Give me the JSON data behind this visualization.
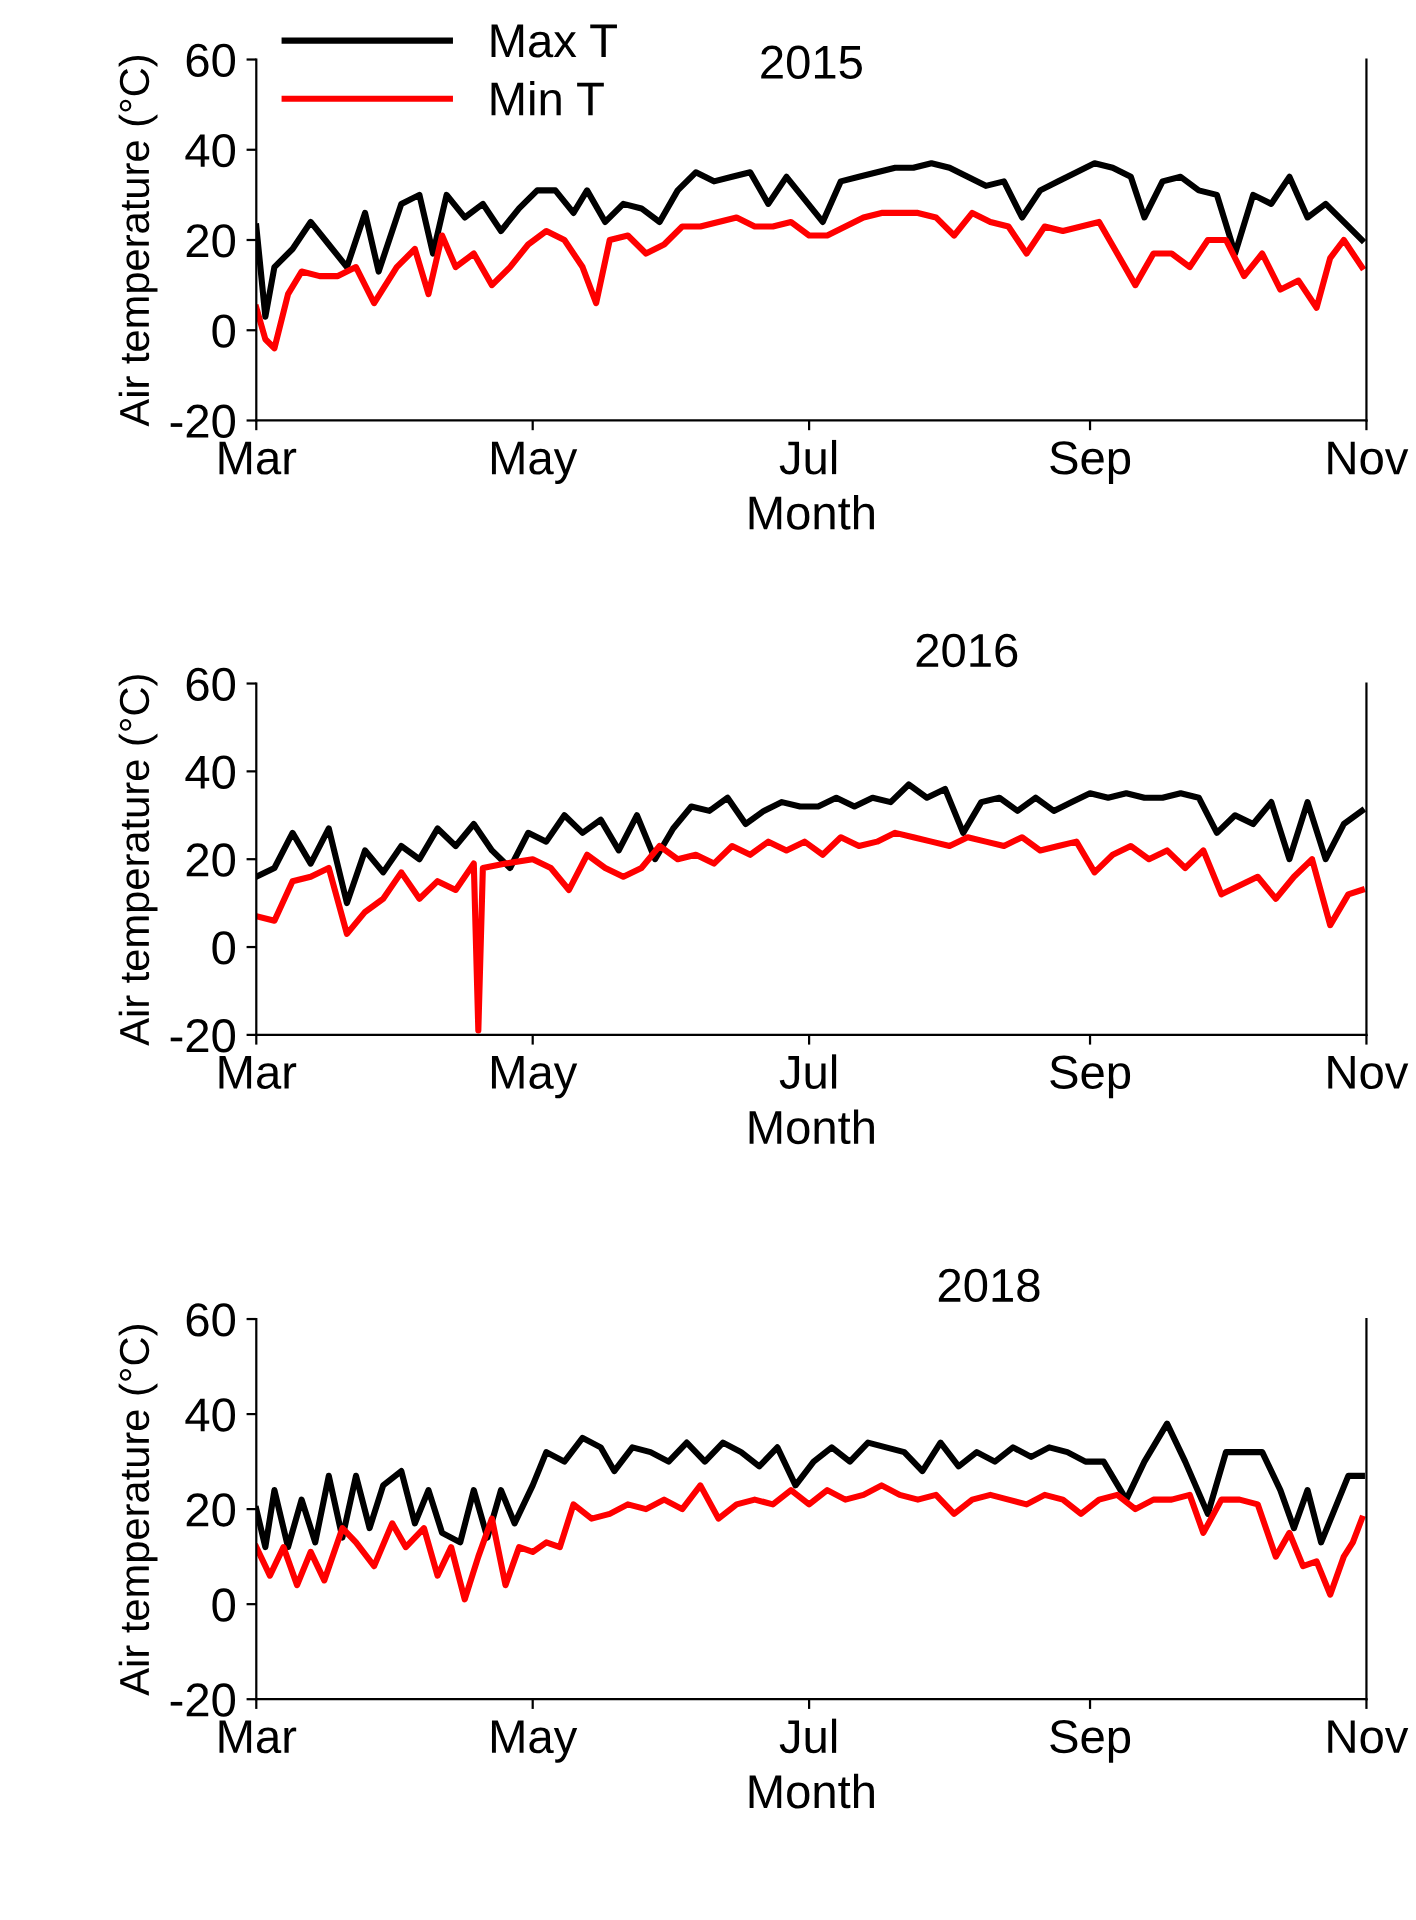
{
  "chart_data": [
    {
      "type": "line",
      "xlabel": "Month",
      "ylabel": "Air temperature (°C)",
      "annotations": [
        "2015"
      ],
      "legend": "top left",
      "grid": false,
      "marker": "none",
      "line_style": "solid",
      "xlim": [
        "2015-03-01",
        "2015-11-01"
      ],
      "xticks": [
        {
          "value": "2015-03-01",
          "label": "Mar"
        },
        {
          "value": "2015-05-01",
          "label": "May"
        },
        {
          "value": "2015-07-01",
          "label": "Jul"
        },
        {
          "value": "2015-09-01",
          "label": "Sep"
        },
        {
          "value": "2015-11-01",
          "label": "Nov"
        }
      ],
      "ylim": [
        -20,
        60
      ],
      "yticks": [
        -20,
        0,
        20,
        40,
        60
      ],
      "series": [
        {
          "name": "Max T",
          "color": "#000000",
          "x": [
            "2015-03-01",
            "2015-03-03",
            "2015-03-05",
            "2015-03-09",
            "2015-03-13",
            "2015-03-17",
            "2015-03-21",
            "2015-03-25",
            "2015-03-28",
            "2015-04-02",
            "2015-04-06",
            "2015-04-09",
            "2015-04-12",
            "2015-04-16",
            "2015-04-20",
            "2015-04-24",
            "2015-04-28",
            "2015-05-02",
            "2015-05-06",
            "2015-05-10",
            "2015-05-13",
            "2015-05-17",
            "2015-05-21",
            "2015-05-25",
            "2015-05-29",
            "2015-06-02",
            "2015-06-06",
            "2015-06-10",
            "2015-06-14",
            "2015-06-18",
            "2015-06-22",
            "2015-06-26",
            "2015-06-30",
            "2015-07-04",
            "2015-07-08",
            "2015-07-12",
            "2015-07-16",
            "2015-07-20",
            "2015-07-24",
            "2015-07-28",
            "2015-08-01",
            "2015-08-05",
            "2015-08-09",
            "2015-08-13",
            "2015-08-17",
            "2015-08-21",
            "2015-08-25",
            "2015-08-29",
            "2015-09-02",
            "2015-09-06",
            "2015-09-10",
            "2015-09-13",
            "2015-09-17",
            "2015-09-21",
            "2015-09-25",
            "2015-09-29",
            "2015-10-03",
            "2015-10-07",
            "2015-10-11",
            "2015-10-15",
            "2015-10-19",
            "2015-10-23",
            "2015-10-27",
            "2015-10-31"
          ],
          "values": [
            23,
            3,
            14,
            18,
            24,
            19,
            14,
            26,
            13,
            28,
            30,
            17,
            30,
            25,
            28,
            22,
            27,
            31,
            31,
            26,
            31,
            24,
            28,
            27,
            24,
            31,
            35,
            33,
            34,
            35,
            28,
            34,
            29,
            24,
            33,
            34,
            35,
            36,
            36,
            37,
            36,
            34,
            32,
            33,
            25,
            31,
            33,
            35,
            37,
            36,
            34,
            25,
            33,
            34,
            31,
            30,
            17,
            30,
            28,
            34,
            25,
            28,
            24,
            20
          ]
        },
        {
          "name": "Min T",
          "color": "#ff0000",
          "x": [
            "2015-03-01",
            "2015-03-03",
            "2015-03-05",
            "2015-03-08",
            "2015-03-11",
            "2015-03-15",
            "2015-03-19",
            "2015-03-23",
            "2015-03-27",
            "2015-04-01",
            "2015-04-05",
            "2015-04-08",
            "2015-04-11",
            "2015-04-14",
            "2015-04-18",
            "2015-04-22",
            "2015-04-26",
            "2015-04-30",
            "2015-05-04",
            "2015-05-08",
            "2015-05-12",
            "2015-05-15",
            "2015-05-18",
            "2015-05-22",
            "2015-05-26",
            "2015-05-30",
            "2015-06-03",
            "2015-06-07",
            "2015-06-11",
            "2015-06-15",
            "2015-06-19",
            "2015-06-23",
            "2015-06-27",
            "2015-07-01",
            "2015-07-05",
            "2015-07-09",
            "2015-07-13",
            "2015-07-17",
            "2015-07-21",
            "2015-07-25",
            "2015-07-29",
            "2015-08-02",
            "2015-08-06",
            "2015-08-10",
            "2015-08-14",
            "2015-08-18",
            "2015-08-22",
            "2015-08-26",
            "2015-08-30",
            "2015-09-03",
            "2015-09-07",
            "2015-09-11",
            "2015-09-15",
            "2015-09-19",
            "2015-09-23",
            "2015-09-27",
            "2015-10-01",
            "2015-10-05",
            "2015-10-09",
            "2015-10-13",
            "2015-10-17",
            "2015-10-21",
            "2015-10-24",
            "2015-10-27",
            "2015-10-31"
          ],
          "values": [
            5,
            -2,
            -4,
            8,
            13,
            12,
            12,
            14,
            6,
            14,
            18,
            8,
            21,
            14,
            17,
            10,
            14,
            19,
            22,
            20,
            14,
            6,
            20,
            21,
            17,
            19,
            23,
            23,
            24,
            25,
            23,
            23,
            24,
            21,
            21,
            23,
            25,
            26,
            26,
            26,
            25,
            21,
            26,
            24,
            23,
            17,
            23,
            22,
            23,
            24,
            17,
            10,
            17,
            17,
            14,
            20,
            20,
            12,
            17,
            9,
            11,
            5,
            16,
            20,
            14
          ]
        }
      ]
    },
    {
      "type": "line",
      "xlabel": "Month",
      "ylabel": "Air temperature (°C)",
      "annotations": [
        "2016"
      ],
      "grid": false,
      "marker": "none",
      "line_style": "solid",
      "xlim": [
        "2016-03-01",
        "2016-11-01"
      ],
      "xticks": [
        {
          "value": "2016-03-01",
          "label": "Mar"
        },
        {
          "value": "2016-05-01",
          "label": "May"
        },
        {
          "value": "2016-07-01",
          "label": "Jul"
        },
        {
          "value": "2016-09-01",
          "label": "Sep"
        },
        {
          "value": "2016-11-01",
          "label": "Nov"
        }
      ],
      "ylim": [
        -20,
        60
      ],
      "yticks": [
        -20,
        0,
        20,
        40,
        60
      ],
      "series": [
        {
          "color": "#000000",
          "x": [
            "2016-03-01",
            "2016-03-05",
            "2016-03-09",
            "2016-03-13",
            "2016-03-17",
            "2016-03-21",
            "2016-03-25",
            "2016-03-29",
            "2016-04-02",
            "2016-04-06",
            "2016-04-10",
            "2016-04-14",
            "2016-04-18",
            "2016-04-22",
            "2016-04-26",
            "2016-04-30",
            "2016-05-04",
            "2016-05-08",
            "2016-05-12",
            "2016-05-16",
            "2016-05-20",
            "2016-05-24",
            "2016-05-28",
            "2016-06-01",
            "2016-06-05",
            "2016-06-09",
            "2016-06-13",
            "2016-06-17",
            "2016-06-21",
            "2016-06-25",
            "2016-06-29",
            "2016-07-03",
            "2016-07-07",
            "2016-07-11",
            "2016-07-15",
            "2016-07-19",
            "2016-07-23",
            "2016-07-27",
            "2016-07-31",
            "2016-08-04",
            "2016-08-08",
            "2016-08-12",
            "2016-08-16",
            "2016-08-20",
            "2016-08-24",
            "2016-08-28",
            "2016-09-01",
            "2016-09-05",
            "2016-09-09",
            "2016-09-13",
            "2016-09-17",
            "2016-09-21",
            "2016-09-25",
            "2016-09-29",
            "2016-10-03",
            "2016-10-07",
            "2016-10-11",
            "2016-10-15",
            "2016-10-19",
            "2016-10-23",
            "2016-10-27",
            "2016-10-31"
          ],
          "values": [
            16,
            18,
            26,
            19,
            27,
            10,
            22,
            17,
            23,
            20,
            27,
            23,
            28,
            22,
            18,
            26,
            24,
            30,
            26,
            29,
            22,
            30,
            20,
            27,
            32,
            31,
            34,
            28,
            31,
            33,
            32,
            32,
            34,
            32,
            34,
            33,
            37,
            34,
            36,
            26,
            33,
            34,
            31,
            34,
            31,
            33,
            35,
            34,
            35,
            34,
            34,
            35,
            34,
            26,
            30,
            28,
            33,
            20,
            33,
            20,
            28,
            31
          ]
        },
        {
          "color": "#ff0000",
          "x": [
            "2016-03-01",
            "2016-03-05",
            "2016-03-09",
            "2016-03-13",
            "2016-03-17",
            "2016-03-21",
            "2016-03-25",
            "2016-03-29",
            "2016-04-02",
            "2016-04-06",
            "2016-04-10",
            "2016-04-14",
            "2016-04-18",
            "2016-04-19",
            "2016-04-20",
            "2016-04-25",
            "2016-05-01",
            "2016-05-05",
            "2016-05-09",
            "2016-05-13",
            "2016-05-17",
            "2016-05-21",
            "2016-05-25",
            "2016-05-29",
            "2016-06-02",
            "2016-06-06",
            "2016-06-10",
            "2016-06-14",
            "2016-06-18",
            "2016-06-22",
            "2016-06-26",
            "2016-06-30",
            "2016-07-04",
            "2016-07-08",
            "2016-07-12",
            "2016-07-16",
            "2016-07-20",
            "2016-07-24",
            "2016-07-28",
            "2016-08-01",
            "2016-08-05",
            "2016-08-09",
            "2016-08-13",
            "2016-08-17",
            "2016-08-21",
            "2016-08-25",
            "2016-08-29",
            "2016-09-02",
            "2016-09-06",
            "2016-09-10",
            "2016-09-14",
            "2016-09-18",
            "2016-09-22",
            "2016-09-26",
            "2016-09-30",
            "2016-10-04",
            "2016-10-08",
            "2016-10-12",
            "2016-10-16",
            "2016-10-20",
            "2016-10-24",
            "2016-10-28",
            "2016-10-31"
          ],
          "values": [
            7,
            6,
            15,
            16,
            18,
            3,
            8,
            11,
            17,
            11,
            15,
            13,
            19,
            -19,
            18,
            19,
            20,
            18,
            13,
            21,
            18,
            16,
            18,
            23,
            20,
            21,
            19,
            23,
            21,
            24,
            22,
            24,
            21,
            25,
            23,
            24,
            26,
            25,
            24,
            23,
            25,
            24,
            23,
            25,
            22,
            23,
            24,
            17,
            21,
            23,
            20,
            22,
            18,
            22,
            12,
            14,
            16,
            11,
            16,
            20,
            5,
            12,
            13
          ]
        }
      ]
    },
    {
      "type": "line",
      "xlabel": "Month",
      "ylabel": "Air temperature (°C)",
      "annotations": [
        "2018"
      ],
      "grid": false,
      "marker": "none",
      "line_style": "solid",
      "xlim": [
        "2018-03-01",
        "2018-11-01"
      ],
      "xticks": [
        {
          "value": "2018-03-01",
          "label": "Mar"
        },
        {
          "value": "2018-05-01",
          "label": "May"
        },
        {
          "value": "2018-07-01",
          "label": "Jul"
        },
        {
          "value": "2018-09-01",
          "label": "Sep"
        },
        {
          "value": "2018-11-01",
          "label": "Nov"
        }
      ],
      "ylim": [
        -20,
        60
      ],
      "yticks": [
        -20,
        0,
        20,
        40,
        60
      ],
      "series": [
        {
          "color": "#000000",
          "x": [
            "2018-03-01",
            "2018-03-03",
            "2018-03-05",
            "2018-03-08",
            "2018-03-11",
            "2018-03-14",
            "2018-03-17",
            "2018-03-20",
            "2018-03-23",
            "2018-03-26",
            "2018-03-29",
            "2018-04-02",
            "2018-04-05",
            "2018-04-08",
            "2018-04-11",
            "2018-04-15",
            "2018-04-18",
            "2018-04-21",
            "2018-04-24",
            "2018-04-27",
            "2018-05-01",
            "2018-05-04",
            "2018-05-08",
            "2018-05-12",
            "2018-05-16",
            "2018-05-19",
            "2018-05-23",
            "2018-05-27",
            "2018-05-31",
            "2018-06-04",
            "2018-06-08",
            "2018-06-12",
            "2018-06-16",
            "2018-06-20",
            "2018-06-24",
            "2018-06-28",
            "2018-07-02",
            "2018-07-06",
            "2018-07-10",
            "2018-07-14",
            "2018-07-18",
            "2018-07-22",
            "2018-07-26",
            "2018-07-30",
            "2018-08-03",
            "2018-08-07",
            "2018-08-11",
            "2018-08-15",
            "2018-08-19",
            "2018-08-23",
            "2018-08-27",
            "2018-08-31",
            "2018-09-04",
            "2018-09-09",
            "2018-09-13",
            "2018-09-18",
            "2018-09-22",
            "2018-09-27",
            "2018-10-01",
            "2018-10-05",
            "2018-10-09",
            "2018-10-13",
            "2018-10-16",
            "2018-10-19",
            "2018-10-22",
            "2018-10-25",
            "2018-10-28",
            "2018-10-31"
          ],
          "values": [
            20,
            12,
            24,
            12,
            22,
            13,
            27,
            14,
            27,
            16,
            25,
            28,
            17,
            24,
            15,
            13,
            24,
            14,
            24,
            17,
            25,
            32,
            30,
            35,
            33,
            28,
            33,
            32,
            30,
            34,
            30,
            34,
            32,
            29,
            33,
            25,
            30,
            33,
            30,
            34,
            33,
            32,
            28,
            34,
            29,
            32,
            30,
            33,
            31,
            33,
            32,
            30,
            30,
            22,
            30,
            38,
            30,
            19,
            32,
            32,
            32,
            24,
            16,
            24,
            13,
            20,
            27,
            27
          ]
        },
        {
          "color": "#ff0000",
          "x": [
            "2018-03-01",
            "2018-03-04",
            "2018-03-07",
            "2018-03-10",
            "2018-03-13",
            "2018-03-16",
            "2018-03-20",
            "2018-03-23",
            "2018-03-27",
            "2018-03-31",
            "2018-04-03",
            "2018-04-07",
            "2018-04-10",
            "2018-04-13",
            "2018-04-16",
            "2018-04-19",
            "2018-04-22",
            "2018-04-25",
            "2018-04-28",
            "2018-05-01",
            "2018-05-04",
            "2018-05-07",
            "2018-05-10",
            "2018-05-14",
            "2018-05-18",
            "2018-05-22",
            "2018-05-26",
            "2018-05-30",
            "2018-06-03",
            "2018-06-07",
            "2018-06-11",
            "2018-06-15",
            "2018-06-19",
            "2018-06-23",
            "2018-06-27",
            "2018-07-01",
            "2018-07-05",
            "2018-07-09",
            "2018-07-13",
            "2018-07-17",
            "2018-07-21",
            "2018-07-25",
            "2018-07-29",
            "2018-08-02",
            "2018-08-06",
            "2018-08-10",
            "2018-08-14",
            "2018-08-18",
            "2018-08-22",
            "2018-08-26",
            "2018-08-30",
            "2018-09-03",
            "2018-09-07",
            "2018-09-11",
            "2018-09-15",
            "2018-09-19",
            "2018-09-23",
            "2018-09-26",
            "2018-09-30",
            "2018-10-04",
            "2018-10-08",
            "2018-10-12",
            "2018-10-15",
            "2018-10-18",
            "2018-10-21",
            "2018-10-24",
            "2018-10-27",
            "2018-10-29",
            "2018-10-31"
          ],
          "values": [
            12,
            6,
            12,
            4,
            11,
            5,
            16,
            13,
            8,
            17,
            12,
            16,
            6,
            12,
            1,
            10,
            18,
            4,
            12,
            11,
            13,
            12,
            21,
            18,
            19,
            21,
            20,
            22,
            20,
            25,
            18,
            21,
            22,
            21,
            24,
            21,
            24,
            22,
            23,
            25,
            23,
            22,
            23,
            19,
            22,
            23,
            22,
            21,
            23,
            22,
            19,
            22,
            23,
            20,
            22,
            22,
            23,
            15,
            22,
            22,
            21,
            10,
            15,
            8,
            9,
            2,
            10,
            13,
            18
          ]
        }
      ]
    }
  ]
}
